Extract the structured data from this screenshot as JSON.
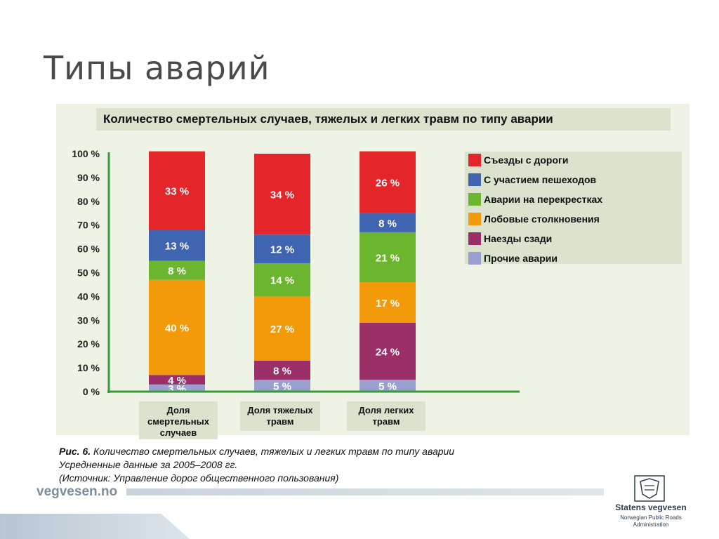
{
  "slide": {
    "title": "Типы аварий"
  },
  "figure_heading": "Количество смертельных случаев, тяжелых и легких травм по типу аварии",
  "chart_data": {
    "type": "bar",
    "stacked": true,
    "yaxis_ticks": [
      "0 %",
      "10 %",
      "20 %",
      "30 %",
      "40 %",
      "50 %",
      "60 %",
      "70 %",
      "80 %",
      "90 %",
      "100 %"
    ],
    "ylim": [
      0,
      100
    ],
    "categories": [
      "Доля смертельных случаев",
      "Доля тяжелых травм",
      "Доля легких травм"
    ],
    "series": [
      {
        "name": "Прочие аварии",
        "color": "#9a9fd0",
        "values": [
          3,
          5,
          5
        ],
        "labels": [
          "3 %",
          "5 %",
          "5 %"
        ]
      },
      {
        "name": "Наезды сзади",
        "color": "#9b2f68",
        "values": [
          4,
          8,
          24
        ],
        "labels": [
          "4 %",
          "8 %",
          "24 %"
        ]
      },
      {
        "name": "Лобовые столкновения",
        "color": "#f39a0a",
        "values": [
          40,
          27,
          17
        ],
        "labels": [
          "40 %",
          "27 %",
          "17 %"
        ]
      },
      {
        "name": "Аварии на перекрестках",
        "color": "#6cb52e",
        "values": [
          8,
          14,
          21
        ],
        "labels": [
          "8 %",
          "14 %",
          "21 %"
        ]
      },
      {
        "name": "С участием пешеходов",
        "color": "#3f65b0",
        "values": [
          13,
          12,
          8
        ],
        "labels": [
          "13 %",
          "12 %",
          "8 %"
        ]
      },
      {
        "name": "Съезды с дороги",
        "color": "#e4252a",
        "values": [
          33,
          34,
          26
        ],
        "labels": [
          "33 %",
          "34 %",
          "26 %"
        ]
      }
    ],
    "legend": {
      "placement": "right",
      "order": [
        "Съезды с дороги",
        "С участием пешеходов",
        "Аварии на перекрестках",
        "Лобовые столкновения",
        "Наезды сзади",
        "Прочие аварии"
      ]
    },
    "category_labels": [
      [
        "Доля",
        "смертельных",
        "случаев"
      ],
      [
        "Доля тяжелых",
        "травм"
      ],
      [
        "Доля легких",
        "травм"
      ]
    ]
  },
  "caption": {
    "line1_prefix": "Рис. 6.",
    "line1_text": " Количество смертельных случаев, тяжелых и легких травм по типу аварии",
    "line2": "Усредненные данные за 2005–2008 гг.",
    "line3": "(Источник: Управление дорог общественного пользования)"
  },
  "footer": {
    "site": "vegvesen.no",
    "org_name": "Statens vegvesen",
    "org_sub_1": "Norwegian Public Roads",
    "org_sub_2": "Administration"
  }
}
